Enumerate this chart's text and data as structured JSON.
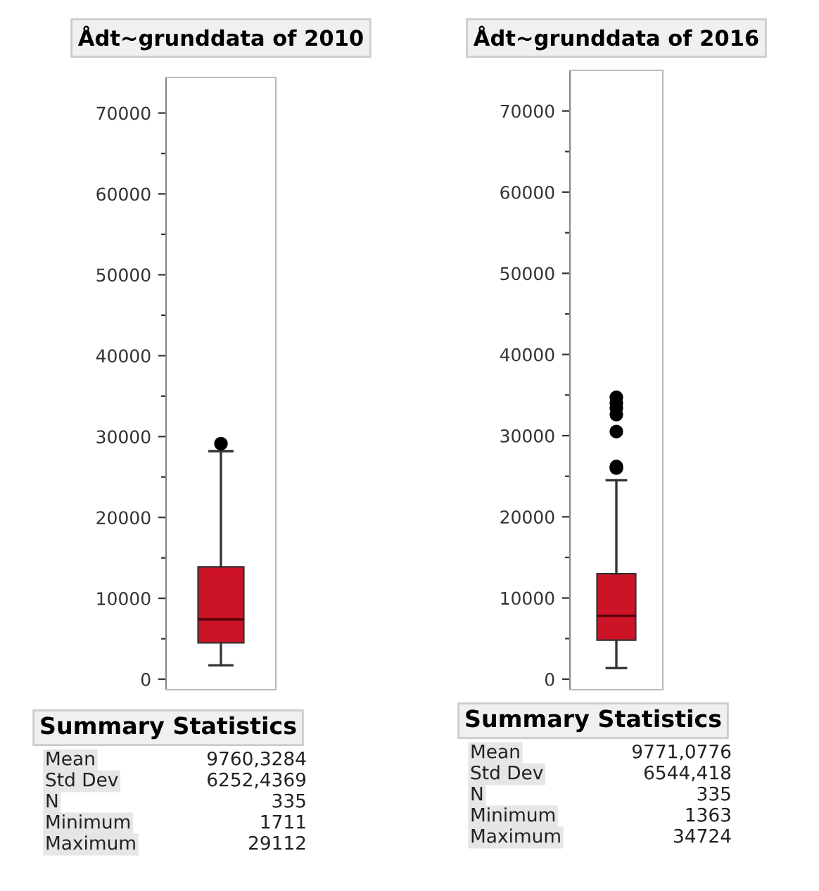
{
  "chart_data": [
    {
      "type": "box",
      "title": "Ådt~grunddata of 2010",
      "categories": [
        null
      ],
      "color": "#cc1426",
      "boxes": [
        {
          "low": 1711,
          "q1": 4500,
          "median": 7400,
          "q3": 13900,
          "high": 28200,
          "outliers": [
            29112
          ]
        }
      ],
      "ylim": [
        -1300,
        74400
      ],
      "yticks": [
        0,
        {
          "value": 5000,
          "label": null
        },
        10000,
        {
          "value": 15000,
          "label": null
        },
        20000,
        {
          "value": 25000,
          "label": null
        },
        30000,
        {
          "value": 35000,
          "label": null
        },
        40000,
        {
          "value": 45000,
          "label": null
        },
        50000,
        {
          "value": 55000,
          "label": null
        },
        60000,
        {
          "value": 65000,
          "label": null
        },
        70000
      ],
      "grid": false,
      "annotations": [
        "Summary Statistics",
        "Mean",
        "9760,3284",
        "Std Dev",
        "6252,4369",
        "N",
        "335",
        "Minimum",
        "1711",
        "Maximum",
        "29112"
      ]
    },
    {
      "type": "box",
      "title": "Ådt~grunddata of 2016",
      "categories": [
        null
      ],
      "color": "#cc1426",
      "boxes": [
        {
          "low": 1363,
          "q1": 4800,
          "median": 7800,
          "q3": 13000,
          "high": 24500,
          "outliers": [
            34724,
            34000,
            33400,
            32600,
            30500,
            26200,
            26000
          ]
        }
      ],
      "ylim": [
        -1300,
        75000
      ],
      "yticks": [
        0,
        {
          "value": 5000,
          "label": null
        },
        10000,
        {
          "value": 15000,
          "label": null
        },
        20000,
        {
          "value": 25000,
          "label": null
        },
        30000,
        {
          "value": 35000,
          "label": null
        },
        40000,
        {
          "value": 45000,
          "label": null
        },
        50000,
        {
          "value": 55000,
          "label": null
        },
        60000,
        {
          "value": 65000,
          "label": null
        },
        70000
      ],
      "grid": false,
      "annotations": [
        "Summary Statistics",
        "Mean",
        "9771,0776",
        "Std Dev",
        "6544,418",
        "N",
        "335",
        "Minimum",
        "1363",
        "Maximum",
        "34724"
      ]
    }
  ]
}
